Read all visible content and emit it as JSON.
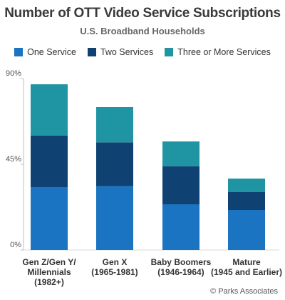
{
  "chart_data": {
    "type": "bar",
    "stacked": true,
    "title": "Number of OTT Video Service Subscriptions",
    "subtitle": "U.S. Broadband Households",
    "categories": [
      [
        "Gen Z/Gen Y/",
        "Millennials",
        "(1982+)"
      ],
      [
        "Gen X",
        "(1965-1981)"
      ],
      [
        "Baby Boomers",
        "(1946-1964)"
      ],
      [
        "Mature",
        "(1945 and Earlier)"
      ]
    ],
    "series": [
      {
        "name": "One Service",
        "color": "#1a74c1",
        "values": [
          33,
          33.5,
          24,
          21
        ]
      },
      {
        "name": "Two Services",
        "color": "#0f4272",
        "values": [
          27,
          23,
          20,
          9.5
        ]
      },
      {
        "name": "Three or More Services",
        "color": "#1f95a3",
        "values": [
          27,
          18.5,
          13,
          7
        ]
      }
    ],
    "ylim": [
      0,
      90
    ],
    "yticks": [
      "0%",
      "45%",
      "90%"
    ],
    "ytick_values": [
      0,
      45,
      90
    ],
    "grid": false,
    "legend_position": "top"
  },
  "footer": {
    "copyright": "© Parks Associates"
  }
}
